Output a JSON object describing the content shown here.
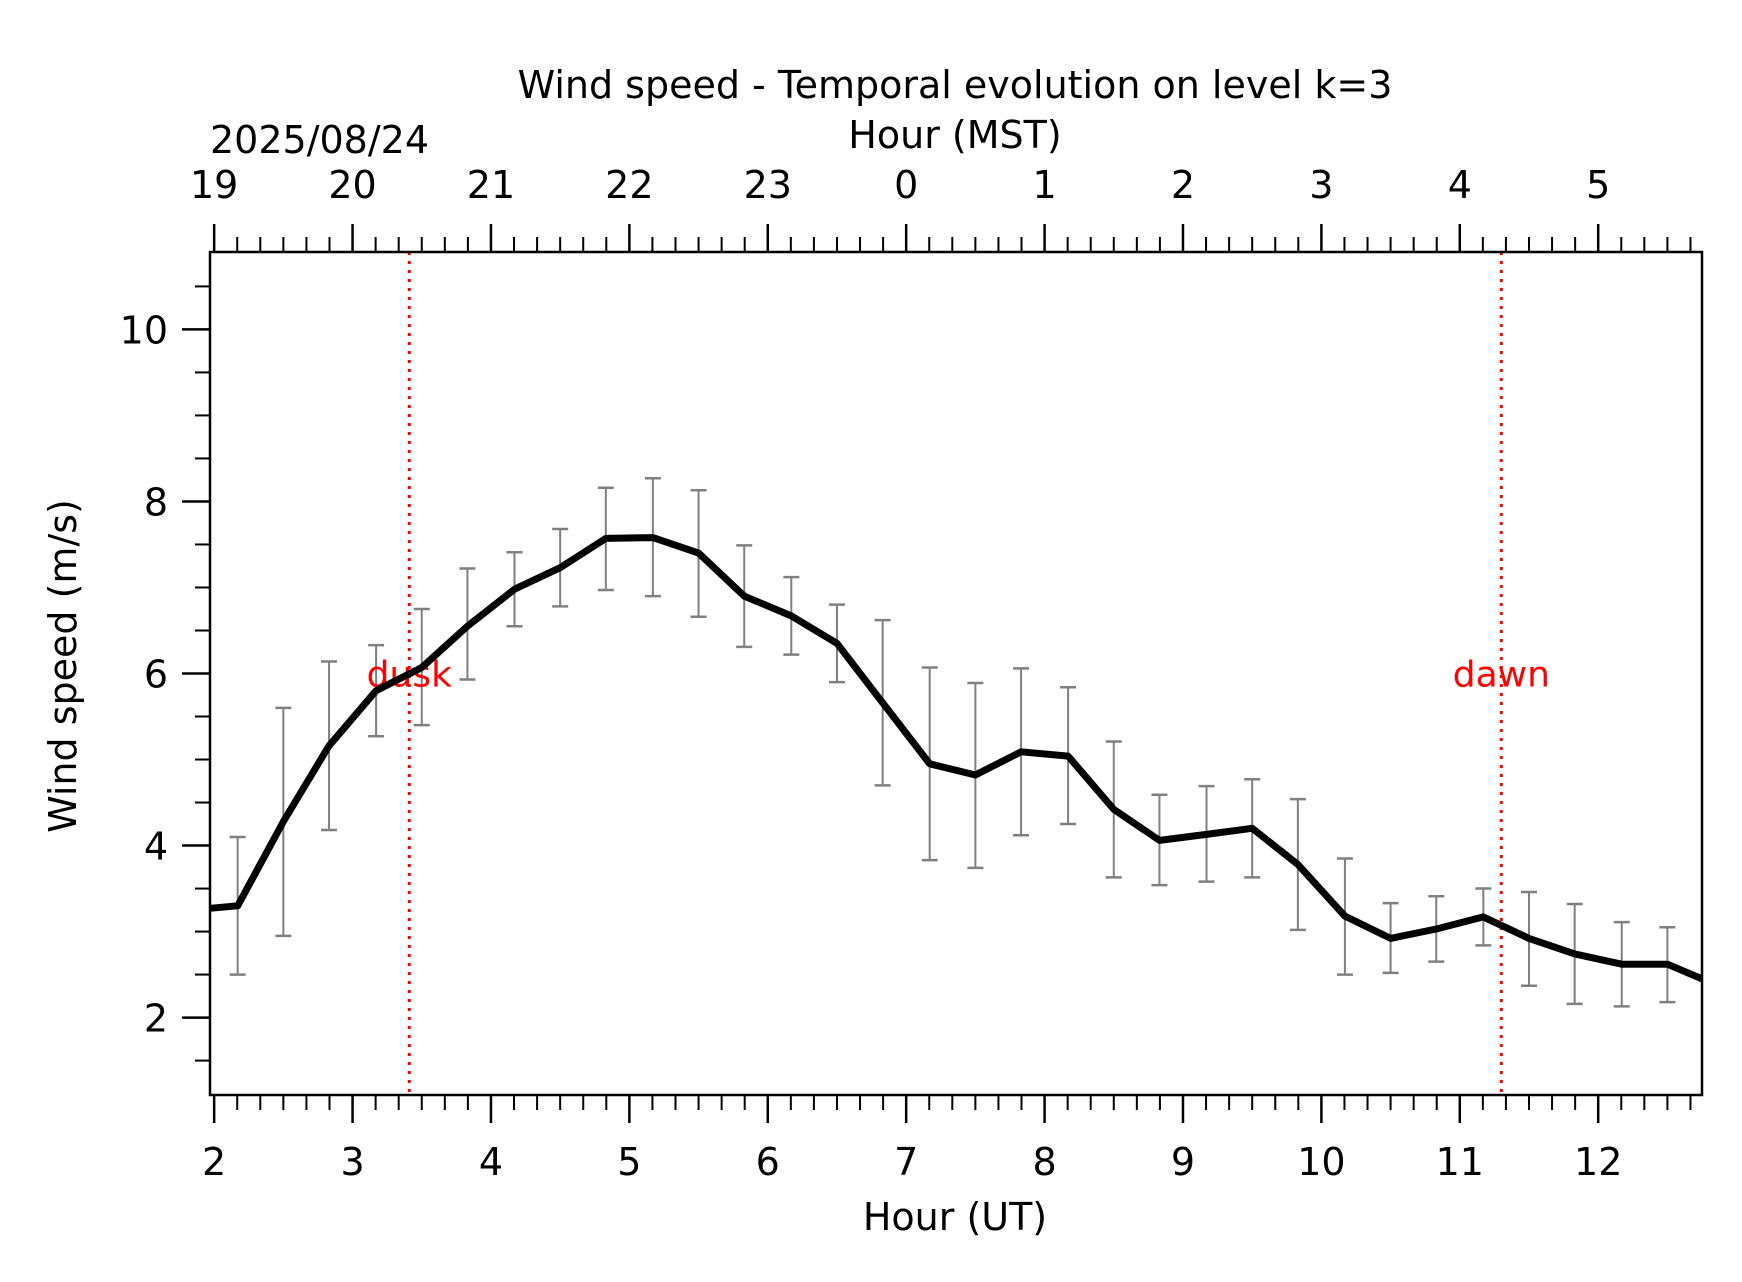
{
  "chart_data": {
    "type": "line",
    "title": "Wind speed - Temporal evolution on level k=3",
    "xlabel": "Hour (UT)",
    "ylabel": "Wind speed (m/s)",
    "top_xlabel": "Hour (MST)",
    "date_label": "2025/08/24",
    "xlim": [
      1.97,
      12.75
    ],
    "ylim": [
      1.1,
      10.9
    ],
    "x_ticks": [
      2,
      3,
      4,
      5,
      6,
      7,
      8,
      9,
      10,
      11,
      12
    ],
    "x_tick_labels": [
      "2",
      "3",
      "4",
      "5",
      "6",
      "7",
      "8",
      "9",
      "10",
      "11",
      "12"
    ],
    "y_ticks": [
      2,
      4,
      6,
      8,
      10
    ],
    "y_tick_labels": [
      "2",
      "4",
      "6",
      "8",
      "10"
    ],
    "top_ticks": [
      2,
      3,
      4,
      5,
      6,
      7,
      8,
      9,
      10,
      11,
      12
    ],
    "top_tick_labels": [
      "19",
      "20",
      "21",
      "22",
      "23",
      "0",
      "1",
      "2",
      "3",
      "4",
      "5"
    ],
    "grid": false,
    "line_color": "#000000",
    "errorbar_color": "#808080",
    "series": [
      {
        "x": [
          1.97,
          2.17,
          2.5,
          2.83,
          3.17,
          3.5,
          3.83,
          4.17,
          4.5,
          4.83,
          5.17,
          5.5,
          5.83,
          6.17,
          6.5,
          6.83,
          7.17,
          7.5,
          7.83,
          8.17,
          8.5,
          8.83,
          9.17,
          9.5,
          9.83,
          10.17,
          10.5,
          10.83,
          11.17,
          11.5,
          11.83,
          12.17,
          12.5,
          12.75
        ],
        "y": [
          3.27,
          3.3,
          4.28,
          5.16,
          5.8,
          6.07,
          6.55,
          6.98,
          7.23,
          7.57,
          7.58,
          7.4,
          6.9,
          6.67,
          6.35,
          5.66,
          4.95,
          4.82,
          5.09,
          5.04,
          4.42,
          4.06,
          4.13,
          4.2,
          3.78,
          3.18,
          2.92,
          3.03,
          3.17,
          2.92,
          2.74,
          2.62,
          2.62,
          2.45
        ],
        "err_low": [
          null,
          2.5,
          2.95,
          4.18,
          5.27,
          5.4,
          5.93,
          6.55,
          6.78,
          6.97,
          6.9,
          6.66,
          6.31,
          6.22,
          5.9,
          4.7,
          3.83,
          3.74,
          4.12,
          4.25,
          3.63,
          3.54,
          3.58,
          3.63,
          3.02,
          2.5,
          2.52,
          2.65,
          2.84,
          2.37,
          2.16,
          2.13,
          2.18,
          null
        ],
        "err_high": [
          null,
          4.1,
          5.6,
          6.14,
          6.33,
          6.75,
          7.22,
          7.41,
          7.68,
          8.16,
          8.27,
          8.13,
          7.49,
          7.12,
          6.8,
          6.62,
          6.07,
          5.89,
          6.06,
          5.84,
          5.21,
          4.59,
          4.69,
          4.77,
          4.54,
          3.85,
          3.33,
          3.41,
          3.5,
          3.46,
          3.32,
          3.11,
          3.05,
          null
        ]
      }
    ],
    "annotations": [
      {
        "label": "dusk",
        "x": 3.41,
        "y": 6.0,
        "color": "#ff0000",
        "style": "dotted vertical line"
      },
      {
        "label": "dawn",
        "x": 11.3,
        "y": 6.0,
        "color": "#ff0000",
        "style": "dotted vertical line"
      }
    ]
  }
}
